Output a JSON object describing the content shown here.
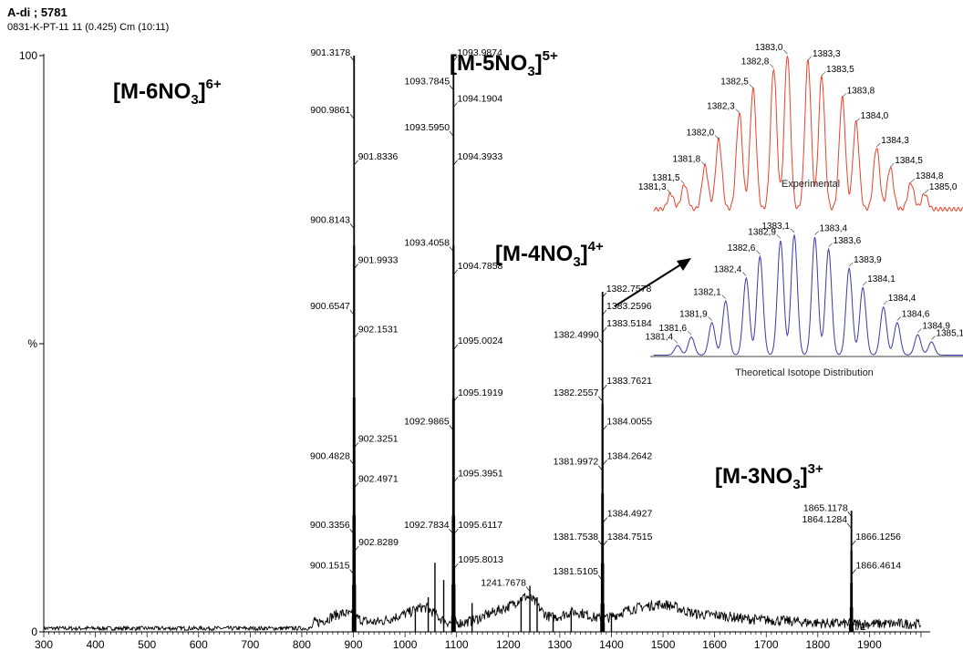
{
  "header": {
    "title": "A-di ; 5781",
    "subtitle": "0831-K-PT-11 11 (0.425) Cm (10:11)"
  },
  "chart_data": [
    {
      "type": "line",
      "xlabel": "m/z",
      "ylabel": "%",
      "xlim": [
        300,
        2000
      ],
      "ylim": [
        0,
        100
      ],
      "x_ticks": [
        300,
        400,
        500,
        600,
        700,
        800,
        900,
        1000,
        1100,
        1200,
        1300,
        1400,
        1500,
        1600,
        1700,
        1800,
        1900
      ],
      "y_ticks": [
        {
          "value": 0,
          "label": "0"
        },
        {
          "value": 50,
          "label": "%"
        },
        {
          "value": 100,
          "label": "100"
        }
      ],
      "grid": false,
      "peaks": [
        {
          "x": 901.3178,
          "y": 100
        },
        {
          "x": 1093.9874,
          "y": 100
        },
        {
          "x": 1382.7578,
          "y": 59
        },
        {
          "x": 1865.1178,
          "y": 21
        }
      ],
      "peak_labels": [
        {
          "text": "901.3178",
          "x": 901.3178,
          "y": 100,
          "side": "left"
        },
        {
          "text": "900.9861",
          "x": 900.9861,
          "y": 90,
          "side": "left"
        },
        {
          "text": "901.8336",
          "x": 901.8336,
          "y": 82,
          "side": "right"
        },
        {
          "text": "900.8143",
          "x": 900.8143,
          "y": 71,
          "side": "left"
        },
        {
          "text": "901.9933",
          "x": 901.9933,
          "y": 64,
          "side": "right"
        },
        {
          "text": "900.6547",
          "x": 900.6547,
          "y": 56,
          "side": "left"
        },
        {
          "text": "902.1531",
          "x": 902.1531,
          "y": 52,
          "side": "right"
        },
        {
          "text": "902.3251",
          "x": 902.3251,
          "y": 33,
          "side": "right"
        },
        {
          "text": "900.4828",
          "x": 900.4828,
          "y": 30,
          "side": "left"
        },
        {
          "text": "902.4971",
          "x": 902.4971,
          "y": 26,
          "side": "right"
        },
        {
          "text": "900.3356",
          "x": 900.3356,
          "y": 18,
          "side": "left"
        },
        {
          "text": "902.8289",
          "x": 902.8289,
          "y": 15,
          "side": "right"
        },
        {
          "text": "900.1515",
          "x": 900.1515,
          "y": 11,
          "side": "left"
        },
        {
          "text": "1093.9874",
          "x": 1093.9874,
          "y": 100,
          "side": "right"
        },
        {
          "text": "1093.7845",
          "x": 1093.7845,
          "y": 95,
          "side": "left"
        },
        {
          "text": "1094.1904",
          "x": 1094.1904,
          "y": 92,
          "side": "right"
        },
        {
          "text": "1093.5950",
          "x": 1093.595,
          "y": 87,
          "side": "left"
        },
        {
          "text": "1094.3933",
          "x": 1094.3933,
          "y": 82,
          "side": "right"
        },
        {
          "text": "1093.4058",
          "x": 1093.4058,
          "y": 67,
          "side": "left"
        },
        {
          "text": "1094.7858",
          "x": 1094.7858,
          "y": 63,
          "side": "right"
        },
        {
          "text": "1095.0024",
          "x": 1095.0024,
          "y": 50,
          "side": "right"
        },
        {
          "text": "1095.1919",
          "x": 1095.1919,
          "y": 41,
          "side": "right"
        },
        {
          "text": "1092.9865",
          "x": 1092.9865,
          "y": 36,
          "side": "left"
        },
        {
          "text": "1095.3951",
          "x": 1095.3951,
          "y": 27,
          "side": "right"
        },
        {
          "text": "1092.7834",
          "x": 1092.7834,
          "y": 18,
          "side": "left"
        },
        {
          "text": "1095.6117",
          "x": 1095.6117,
          "y": 18,
          "side": "right"
        },
        {
          "text": "1095.8013",
          "x": 1095.8013,
          "y": 12,
          "side": "right"
        },
        {
          "text": "1241.7678",
          "x": 1241.7678,
          "y": 8,
          "side": "left"
        },
        {
          "text": "1382.7578",
          "x": 1382.7578,
          "y": 59,
          "side": "right"
        },
        {
          "text": "1383.2596",
          "x": 1383.2596,
          "y": 56,
          "side": "right"
        },
        {
          "text": "1383.5184",
          "x": 1383.5184,
          "y": 53,
          "side": "right"
        },
        {
          "text": "1382.4990",
          "x": 1382.499,
          "y": 51,
          "side": "left"
        },
        {
          "text": "1383.7621",
          "x": 1383.7621,
          "y": 43,
          "side": "right"
        },
        {
          "text": "1382.2557",
          "x": 1382.2557,
          "y": 41,
          "side": "left"
        },
        {
          "text": "1384.0055",
          "x": 1384.0055,
          "y": 36,
          "side": "right"
        },
        {
          "text": "1381.9972",
          "x": 1381.9972,
          "y": 29,
          "side": "left"
        },
        {
          "text": "1384.2642",
          "x": 1384.2642,
          "y": 30,
          "side": "right"
        },
        {
          "text": "1384.4927",
          "x": 1384.4927,
          "y": 20,
          "side": "right"
        },
        {
          "text": "1381.7538",
          "x": 1381.7538,
          "y": 16,
          "side": "left"
        },
        {
          "text": "1384.7515",
          "x": 1384.7515,
          "y": 16,
          "side": "right"
        },
        {
          "text": "1381.5105",
          "x": 1381.5105,
          "y": 10,
          "side": "left"
        },
        {
          "text": "1865.1178",
          "x": 1865.1178,
          "y": 21,
          "side": "left"
        },
        {
          "text": "1864.1284",
          "x": 1864.1284,
          "y": 19,
          "side": "left"
        },
        {
          "text": "1866.1256",
          "x": 1866.1256,
          "y": 16,
          "side": "right"
        },
        {
          "text": "1866.4614",
          "x": 1866.4614,
          "y": 11,
          "side": "right"
        }
      ],
      "annotations": [
        {
          "base": "[M-6NO",
          "sub": "3",
          "close": "]",
          "sup": "6+"
        },
        {
          "base": "[M-5NO",
          "sub": "3",
          "close": "]",
          "sup": "5+"
        },
        {
          "base": "[M-4NO",
          "sub": "3",
          "close": "]",
          "sup": "4+"
        },
        {
          "base": "[M-3NO",
          "sub": "3",
          "close": "]",
          "sup": "3+"
        }
      ]
    },
    {
      "type": "line",
      "caption": "Experimental",
      "color": "#e8412c",
      "xlim": [
        1381.2,
        1385.4
      ],
      "x": [
        1381.3,
        1381.5,
        1381.8,
        1382.0,
        1382.3,
        1382.5,
        1382.8,
        1383.0,
        1383.3,
        1383.5,
        1383.8,
        1384.0,
        1384.3,
        1384.5,
        1384.8,
        1385.0
      ],
      "y": [
        10,
        16,
        28,
        45,
        62,
        78,
        91,
        100,
        96,
        86,
        72,
        56,
        40,
        27,
        17,
        10
      ],
      "labels": [
        "1381,3",
        "1381,5",
        "1381,8",
        "1382,0",
        "1382,3",
        "1382,5",
        "1382,8",
        "1383,0",
        "1383,3",
        "1383,5",
        "1383,8",
        "1384,0",
        "1384,3",
        "1384,5",
        "1384,8",
        "1385,0"
      ]
    },
    {
      "type": "line",
      "caption": "Theoretical Isotope Distribution",
      "color": "#3a3aa8",
      "xlim": [
        1381.2,
        1385.4
      ],
      "x": [
        1381.4,
        1381.6,
        1381.9,
        1382.1,
        1382.4,
        1382.6,
        1382.9,
        1383.1,
        1383.4,
        1383.6,
        1383.9,
        1384.1,
        1384.4,
        1384.6,
        1384.9,
        1385.1
      ],
      "y": [
        8,
        15,
        27,
        45,
        64,
        82,
        95,
        100,
        98,
        88,
        72,
        56,
        40,
        27,
        17,
        11
      ],
      "labels": [
        "1381,4",
        "1381,6",
        "1381,9",
        "1382,1",
        "1382,4",
        "1382,6",
        "1382,9",
        "1383,1",
        "1383,4",
        "1383,6",
        "1383,9",
        "1384,1",
        "1384,4",
        "1384,6",
        "1384,9",
        "1385,1"
      ]
    }
  ]
}
